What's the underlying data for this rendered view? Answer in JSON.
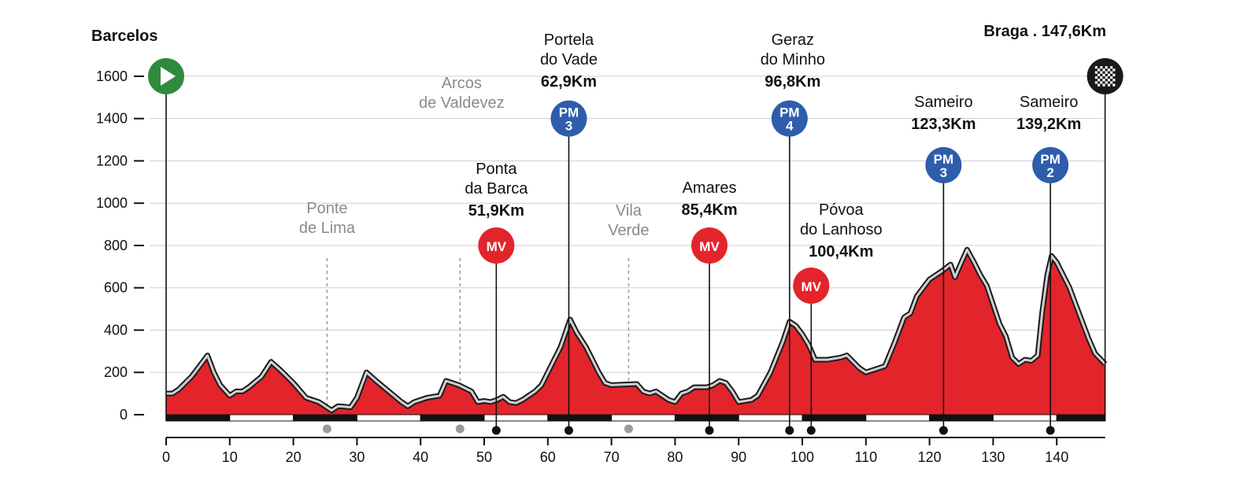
{
  "chart_data": {
    "type": "area",
    "title": "",
    "xlabel": "",
    "ylabel": "",
    "xlim": [
      0,
      147.6
    ],
    "ylim": [
      0,
      1600
    ],
    "x_ticks": [
      0,
      10,
      20,
      30,
      40,
      50,
      60,
      70,
      80,
      90,
      100,
      110,
      120,
      130,
      140
    ],
    "y_ticks": [
      0,
      200,
      400,
      600,
      800,
      1000,
      1200,
      1400,
      1600
    ],
    "grid": "horizontal",
    "colors": {
      "fill": "#e3242b",
      "outline_dark": "#1a1a1a",
      "outline_light": "#d0d0d0",
      "start": "#2e8b3e",
      "finish": "#1a1a1a",
      "pm_badge": "#2f5dab",
      "mv_badge": "#e3242b",
      "town_grey": "#8a8a8a"
    },
    "start": {
      "label": "Barcelos",
      "km": 0,
      "icon": "play-icon"
    },
    "finish": {
      "label": "Braga . 147,6Km",
      "km": 147.6,
      "icon": "checkered-flag-icon"
    },
    "profile": [
      [
        0,
        100
      ],
      [
        1,
        100
      ],
      [
        2,
        120
      ],
      [
        3,
        150
      ],
      [
        4,
        180
      ],
      [
        5,
        220
      ],
      [
        6.5,
        280
      ],
      [
        7.5,
        200
      ],
      [
        8.5,
        140
      ],
      [
        10,
        90
      ],
      [
        11,
        110
      ],
      [
        12,
        110
      ],
      [
        13,
        130
      ],
      [
        15,
        180
      ],
      [
        16.5,
        250
      ],
      [
        18,
        210
      ],
      [
        20,
        150
      ],
      [
        22,
        80
      ],
      [
        24,
        60
      ],
      [
        25.5,
        30
      ],
      [
        26,
        20
      ],
      [
        27,
        40
      ],
      [
        28,
        38
      ],
      [
        29,
        35
      ],
      [
        30,
        80
      ],
      [
        31.5,
        200
      ],
      [
        33,
        160
      ],
      [
        35,
        110
      ],
      [
        37,
        60
      ],
      [
        38,
        40
      ],
      [
        39,
        60
      ],
      [
        41,
        80
      ],
      [
        43,
        90
      ],
      [
        44,
        160
      ],
      [
        46,
        140
      ],
      [
        48,
        110
      ],
      [
        49,
        60
      ],
      [
        50,
        65
      ],
      [
        51,
        60
      ],
      [
        52,
        70
      ],
      [
        53,
        85
      ],
      [
        54,
        60
      ],
      [
        55,
        55
      ],
      [
        56,
        70
      ],
      [
        58,
        110
      ],
      [
        59,
        140
      ],
      [
        61,
        260
      ],
      [
        62,
        320
      ],
      [
        63.5,
        450
      ],
      [
        64.5,
        390
      ],
      [
        66,
        320
      ],
      [
        67,
        260
      ],
      [
        68,
        200
      ],
      [
        69,
        150
      ],
      [
        70,
        140
      ],
      [
        74,
        145
      ],
      [
        75,
        110
      ],
      [
        76,
        100
      ],
      [
        77,
        110
      ],
      [
        78,
        90
      ],
      [
        79,
        70
      ],
      [
        80,
        60
      ],
      [
        81,
        100
      ],
      [
        82,
        110
      ],
      [
        83,
        130
      ],
      [
        85,
        130
      ],
      [
        86,
        140
      ],
      [
        87,
        160
      ],
      [
        88,
        150
      ],
      [
        89,
        110
      ],
      [
        90,
        60
      ],
      [
        92,
        70
      ],
      [
        93,
        90
      ],
      [
        95,
        200
      ],
      [
        97,
        350
      ],
      [
        98,
        440
      ],
      [
        99,
        420
      ],
      [
        100,
        380
      ],
      [
        101,
        330
      ],
      [
        102,
        260
      ],
      [
        104,
        260
      ],
      [
        106,
        270
      ],
      [
        107,
        280
      ],
      [
        108,
        250
      ],
      [
        109,
        220
      ],
      [
        110,
        200
      ],
      [
        111,
        210
      ],
      [
        112,
        220
      ],
      [
        113,
        230
      ],
      [
        114.5,
        340
      ],
      [
        116,
        460
      ],
      [
        117,
        480
      ],
      [
        118,
        560
      ],
      [
        119,
        600
      ],
      [
        120,
        640
      ],
      [
        121,
        660
      ],
      [
        122,
        680
      ],
      [
        123.3,
        710
      ],
      [
        124,
        650
      ],
      [
        125,
        720
      ],
      [
        125.9,
        780
      ],
      [
        127,
        720
      ],
      [
        128,
        660
      ],
      [
        129,
        610
      ],
      [
        130,
        520
      ],
      [
        131,
        430
      ],
      [
        132,
        370
      ],
      [
        133,
        270
      ],
      [
        134,
        240
      ],
      [
        135,
        260
      ],
      [
        136,
        255
      ],
      [
        137,
        280
      ],
      [
        137.7,
        480
      ],
      [
        138.5,
        660
      ],
      [
        139.2,
        750
      ],
      [
        140,
        720
      ],
      [
        141,
        660
      ],
      [
        142,
        600
      ],
      [
        143,
        520
      ],
      [
        144,
        440
      ],
      [
        145,
        360
      ],
      [
        146,
        290
      ],
      [
        147.6,
        240
      ]
    ],
    "summits": [
      {
        "name": [
          "Portela",
          "do Vade"
        ],
        "distance": "62,9Km",
        "km": 63.3,
        "badge": [
          "PM",
          "3"
        ],
        "kind": "pm",
        "badge_alt": 1400
      },
      {
        "name": [
          "Geraz",
          "do Minho"
        ],
        "distance": "96,8Km",
        "km": 98.0,
        "badge": [
          "PM",
          "4"
        ],
        "kind": "pm",
        "badge_alt": 1400
      },
      {
        "name": [
          "Sameiro"
        ],
        "distance": "123,3Km",
        "km": 122.2,
        "badge": [
          "PM",
          "3"
        ],
        "kind": "pm",
        "badge_alt": 1180
      },
      {
        "name": [
          "Sameiro"
        ],
        "distance": "139,2Km",
        "km": 139.0,
        "badge": [
          "PM",
          "2"
        ],
        "kind": "pm",
        "badge_alt": 1180
      }
    ],
    "sprints": [
      {
        "name": [
          "Ponta",
          "da Barca"
        ],
        "distance": "51,9Km",
        "km": 51.9,
        "badge": [
          "MV"
        ],
        "kind": "mv",
        "badge_alt": 800
      },
      {
        "name": [
          "Amares"
        ],
        "distance": "85,4Km",
        "km": 85.4,
        "badge": [
          "MV"
        ],
        "kind": "mv",
        "badge_alt": 800
      },
      {
        "name": [
          "Póvoa",
          "do Lanhoso"
        ],
        "distance": "100,4Km",
        "km": 101.4,
        "badge": [
          "MV"
        ],
        "kind": "mv",
        "badge_alt": 610
      }
    ],
    "towns": [
      {
        "name": [
          "Ponte",
          "de Lima"
        ],
        "km": 25.3
      },
      {
        "name": [
          "Arcos",
          "de Valdevez"
        ],
        "km": 46.2
      },
      {
        "name": [
          "Vila",
          "Verde"
        ],
        "km": 72.7
      }
    ]
  }
}
